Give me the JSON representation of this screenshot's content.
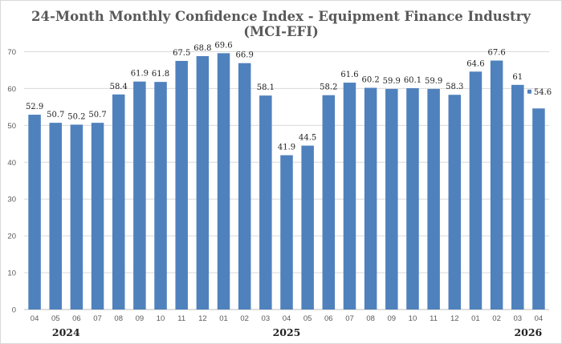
{
  "chart_data": {
    "type": "bar",
    "title_line1": "24-Month Monthly Confidence Index - Equipment Finance Industry",
    "title_line2": "(MCI-EFI)",
    "categories": [
      "04",
      "05",
      "06",
      "07",
      "08",
      "09",
      "10",
      "11",
      "12",
      "01",
      "02",
      "03",
      "04",
      "05",
      "06",
      "07",
      "08",
      "09",
      "10",
      "11",
      "12",
      "01",
      "02",
      "03",
      "04"
    ],
    "values": [
      52.9,
      50.7,
      50.2,
      50.7,
      58.4,
      61.9,
      61.8,
      67.5,
      68.8,
      69.6,
      66.9,
      58.1,
      41.9,
      44.5,
      58.2,
      61.6,
      60.2,
      59.9,
      60.1,
      59.9,
      58.3,
      64.6,
      67.6,
      61,
      54.6
    ],
    "labels": [
      "52.9",
      "50.7",
      "50.2",
      "50.7",
      "58.4",
      "61.9",
      "61.8",
      "67.5",
      "68.8",
      "69.6",
      "66.9",
      "58.1",
      "41.9",
      "44.5",
      "58.2",
      "61.6",
      "60.2",
      "59.9",
      "60.1",
      "59.9",
      "58.3",
      "64.6",
      "67.6",
      "61",
      "54.6"
    ],
    "year_labels": [
      {
        "text": "2024",
        "category_index": 1.5
      },
      {
        "text": "2025",
        "category_index": 12
      },
      {
        "text": "2026",
        "category_index": 23.5
      }
    ],
    "yticks": [
      "0",
      "10",
      "20",
      "30",
      "40",
      "50",
      "60",
      "70"
    ],
    "ylim": [
      0,
      70
    ],
    "grid": true,
    "legend": "none",
    "bar_color": "#4f81bd",
    "grid_color": "#d9d9d9"
  }
}
